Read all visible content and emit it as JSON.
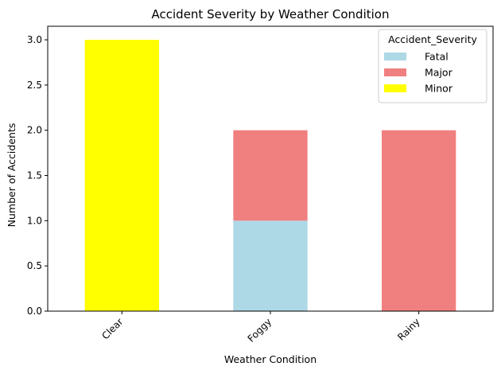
{
  "chart_data": {
    "type": "bar",
    "stacked": true,
    "title": "Accident Severity by Weather Condition",
    "xlabel": "Weather Condition",
    "ylabel": "Number of Accidents",
    "categories": [
      "Clear",
      "Foggy",
      "Rainy"
    ],
    "series": [
      {
        "name": "Fatal",
        "color": "#add8e6",
        "values": [
          0,
          1,
          0
        ]
      },
      {
        "name": "Major",
        "color": "#f08080",
        "values": [
          0,
          1,
          2
        ]
      },
      {
        "name": "Minor",
        "color": "#ffff00",
        "values": [
          3,
          0,
          0
        ]
      }
    ],
    "ylim": [
      0,
      3.15
    ],
    "yticks": [
      0.0,
      0.5,
      1.0,
      1.5,
      2.0,
      2.5,
      3.0
    ],
    "ytick_labels": [
      "0.0",
      "0.5",
      "1.0",
      "1.5",
      "2.0",
      "2.5",
      "3.0"
    ],
    "xtick_rotation": 45,
    "grid": false,
    "legend": {
      "title": "Accident_Severity",
      "position": "top-right"
    }
  }
}
